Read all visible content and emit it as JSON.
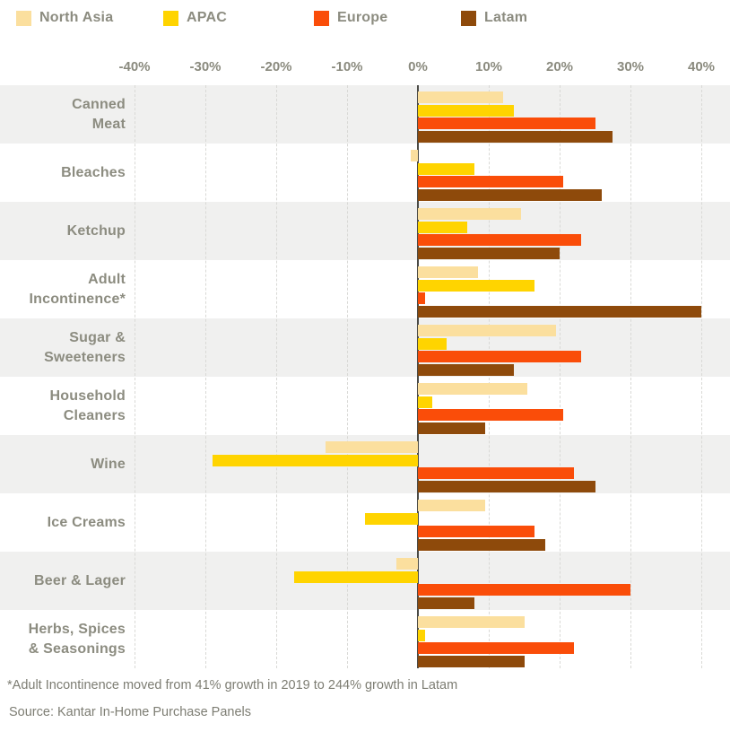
{
  "legend": {
    "items": [
      {
        "label": "North Asia",
        "color": "#FBDF9E"
      },
      {
        "label": "APAC",
        "color": "#FFD400"
      },
      {
        "label": "Europe",
        "color": "#FA4D09"
      },
      {
        "label": "Latam",
        "color": "#8E4A0B"
      }
    ]
  },
  "chart_data": {
    "type": "bar",
    "orientation": "horizontal",
    "unit": "percent growth",
    "title": "",
    "xlabel": "",
    "ylabel": "",
    "axis": {
      "min": -40,
      "max": 40,
      "ticks": [
        -40,
        -30,
        -20,
        -10,
        0,
        10,
        20,
        30,
        40
      ],
      "tick_labels": [
        "-40%",
        "-30%",
        "-20%",
        "-10%",
        "0%",
        "10%",
        "20%",
        "30%",
        "40%"
      ]
    },
    "grid": "dashed vertical gridlines every 10%, solid dark line at 0%",
    "legend_position": "top",
    "categories": [
      "Canned Meat",
      "Bleaches",
      "Ketchup",
      "Adult Incontinence*",
      "Sugar & Sweeteners",
      "Household Cleaners",
      "Wine",
      "Ice Creams",
      "Beer & Lager",
      "Herbs, Spices & Seasonings"
    ],
    "category_display": [
      "Canned\nMeat",
      "Bleaches",
      "Ketchup",
      "Adult\nIncontinence*",
      "Sugar &\nSweeteners",
      "Household\nCleaners",
      "Wine",
      "Ice Creams",
      "Beer & Lager",
      "Herbs, Spices\n& Seasonings"
    ],
    "series": [
      {
        "name": "North Asia",
        "color": "#FBDF9E",
        "values": [
          12,
          -1,
          14.5,
          8.5,
          19.5,
          15.5,
          -13,
          9.5,
          -3,
          15
        ]
      },
      {
        "name": "APAC",
        "color": "#FFD400",
        "values": [
          13.5,
          8,
          7,
          16.5,
          4,
          2,
          -29,
          -7.5,
          -17.5,
          1
        ]
      },
      {
        "name": "Europe",
        "color": "#FA4D09",
        "values": [
          25,
          20.5,
          23,
          1,
          23,
          20.5,
          22,
          16.5,
          30,
          22
        ]
      },
      {
        "name": "Latam",
        "color": "#8E4A0B",
        "values": [
          27.5,
          26,
          20,
          40,
          13.5,
          9.5,
          25,
          18,
          8,
          15
        ]
      }
    ],
    "notes": "Adult Incontinence Latam bar is clipped at the 40% axis maximum (actual 244% per footnote)",
    "row_stripe_colors": [
      "#F0F0EF",
      "#FFFFFF"
    ]
  },
  "footnote": "*Adult Incontinence moved from 41% growth in 2019 to 244% growth in Latam",
  "source": "Source: Kantar In-Home Purchase Panels"
}
